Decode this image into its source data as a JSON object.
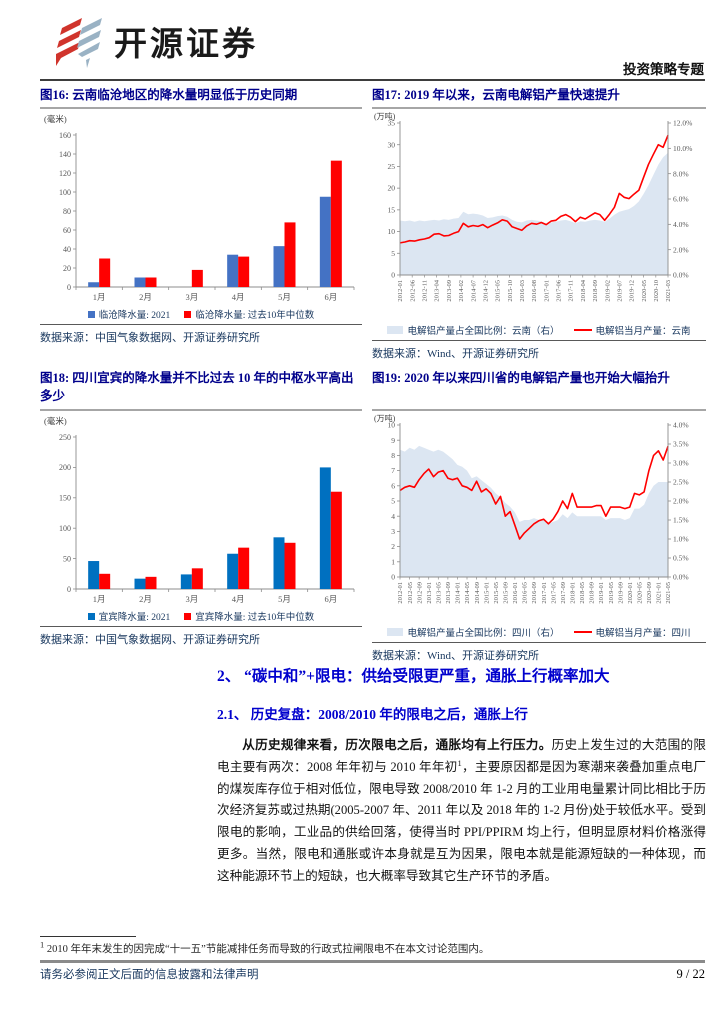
{
  "header": {
    "brand": "开源证券",
    "doc_type": "投资策略专题"
  },
  "figures": [
    {
      "title": "图16:  云南临沧地区的降水量明显低于历史同期",
      "source": "数据来源：中国气象数据网、开源证券研究所"
    },
    {
      "title": "图17:  2019 年以来，云南电解铝产量快速提升",
      "source": "数据来源：Wind、开源证券研究所"
    },
    {
      "title": "图18:  四川宜宾的降水量并不比过去 10 年的中枢水平高出多少",
      "source": "数据来源：中国气象数据网、开源证券研究所"
    },
    {
      "title": "图19:  2020 年以来四川省的电解铝产量也开始大幅抬升",
      "source": "数据来源：Wind、开源证券研究所"
    }
  ],
  "chart_data": [
    {
      "id": "fig16",
      "type": "bar",
      "unit": "(毫米)",
      "categories": [
        "1月",
        "2月",
        "3月",
        "4月",
        "5月",
        "6月"
      ],
      "ylim": [
        0,
        160
      ],
      "ystep": 20,
      "series": [
        {
          "name": "临沧降水量: 2021",
          "color": "#4472C4",
          "values": [
            5,
            10,
            0,
            34,
            43,
            95
          ]
        },
        {
          "name": "临沧降水量: 过去10年中位数",
          "color": "#FF0000",
          "values": [
            30,
            10,
            18,
            32,
            68,
            133
          ]
        }
      ]
    },
    {
      "id": "fig17",
      "type": "area+line",
      "unit": "(万吨)",
      "left_axis": {
        "lim": [
          0,
          35
        ],
        "step": 5
      },
      "right_axis": {
        "lim": [
          0,
          12
        ],
        "step": 2
      },
      "x_labels": [
        "2012-01",
        "2012-06",
        "2012-11",
        "2013-04",
        "2013-09",
        "2014-02",
        "2014-07",
        "2014-12",
        "2015-05",
        "2015-10",
        "2016-03",
        "2016-08",
        "2017-01",
        "2017-06",
        "2017-11",
        "2018-04",
        "2018-09",
        "2019-02",
        "2019-07",
        "2019-12",
        "2020-05",
        "2020-10",
        "2021-03"
      ],
      "area": {
        "name": "电解铝产量占全国比例：云南（右）",
        "color": "#DCE6F2",
        "axis": "right",
        "values": [
          4.3,
          4.25,
          4.3,
          4.2,
          4.3,
          4.25,
          4.3,
          4.35,
          4.3,
          4.4,
          4.35,
          4.45,
          4.5,
          5.0,
          4.8,
          4.85,
          4.8,
          4.7,
          4.5,
          4.55,
          4.65,
          4.7,
          4.6,
          4.35,
          4.2,
          4.15,
          4.3,
          4.35,
          4.3,
          4.25,
          4.05,
          4.15,
          4.2,
          4.3,
          4.35,
          4.25,
          4.1,
          4.25,
          4.2,
          4.3,
          4.35,
          4.3,
          4.2,
          4.45,
          4.75,
          5.0,
          5.1,
          5.2,
          5.45,
          5.8,
          6.4,
          7.1,
          7.9,
          8.7,
          9.3,
          9.65
        ]
      },
      "line": {
        "name": "电解铝当月产量：云南",
        "color": "#FF0000",
        "axis": "left",
        "values": [
          7.4,
          7.6,
          7.9,
          7.8,
          8.1,
          8.3,
          8.6,
          9.4,
          9.5,
          9.0,
          9.1,
          9.6,
          10.0,
          11.9,
          11.1,
          11.4,
          11.2,
          11.6,
          10.9,
          11.5,
          12.0,
          12.7,
          12.4,
          11.1,
          10.7,
          10.3,
          11.3,
          11.9,
          11.7,
          12.1,
          11.6,
          12.4,
          12.6,
          13.5,
          13.9,
          13.3,
          12.3,
          13.3,
          12.9,
          13.6,
          14.3,
          13.9,
          12.6,
          14.0,
          15.6,
          18.8,
          17.9,
          17.6,
          18.6,
          19.5,
          22.5,
          25.5,
          27.8,
          30.0,
          29.4,
          32.2
        ]
      }
    },
    {
      "id": "fig18",
      "type": "bar",
      "unit": "(毫米)",
      "categories": [
        "1月",
        "2月",
        "3月",
        "4月",
        "5月",
        "6月"
      ],
      "ylim": [
        0,
        250
      ],
      "ystep": 50,
      "series": [
        {
          "name": "宜宾降水量: 2021",
          "color": "#0070C0",
          "values": [
            46,
            17,
            24,
            58,
            85,
            200
          ]
        },
        {
          "name": "宜宾降水量: 过去10年中位数",
          "color": "#FF0000",
          "values": [
            25,
            20,
            34,
            68,
            76,
            160
          ]
        }
      ]
    },
    {
      "id": "fig19",
      "type": "area+line",
      "unit": "(万吨)",
      "left_axis": {
        "lim": [
          0,
          10
        ],
        "step": 1
      },
      "right_axis": {
        "lim": [
          0,
          4
        ],
        "step": 0.5
      },
      "x_labels": [
        "2012-01",
        "2012-05",
        "2012-09",
        "2013-01",
        "2013-05",
        "2013-09",
        "2014-01",
        "2014-05",
        "2014-09",
        "2015-01",
        "2015-05",
        "2015-09",
        "2016-01",
        "2016-05",
        "2016-09",
        "2017-01",
        "2017-05",
        "2017-09",
        "2018-01",
        "2018-05",
        "2018-09",
        "2019-01",
        "2019-05",
        "2019-09",
        "2020-01",
        "2020-05",
        "2020-09",
        "2021-01",
        "2021-05"
      ],
      "area": {
        "name": "电解铝产量占全国比例：四川（右）",
        "color": "#DCE6F2",
        "axis": "right",
        "values": [
          3.35,
          3.3,
          3.4,
          3.35,
          3.45,
          3.4,
          3.35,
          3.3,
          3.35,
          3.3,
          3.2,
          3.1,
          2.95,
          2.9,
          2.8,
          2.6,
          2.65,
          2.55,
          2.45,
          2.35,
          2.2,
          2.1,
          1.95,
          1.85,
          1.7,
          1.45,
          1.5,
          1.5,
          1.55,
          1.5,
          1.5,
          1.4,
          1.45,
          1.5,
          1.65,
          1.55,
          1.7,
          1.6,
          1.6,
          1.6,
          1.6,
          1.6,
          1.6,
          1.5,
          1.55,
          1.55,
          1.55,
          1.5,
          1.55,
          1.8,
          1.8,
          1.9,
          2.2,
          2.4,
          2.5,
          2.5,
          2.5
        ]
      },
      "line": {
        "name": "电解铝当月产量：四川",
        "color": "#FF0000",
        "axis": "left",
        "values": [
          5.7,
          5.9,
          6.0,
          5.9,
          6.4,
          6.8,
          7.1,
          6.6,
          6.9,
          7.0,
          6.5,
          6.4,
          6.5,
          6.0,
          5.9,
          5.7,
          6.3,
          5.6,
          5.8,
          5.5,
          4.8,
          5.3,
          4.0,
          4.3,
          3.4,
          2.5,
          2.9,
          3.2,
          3.5,
          3.7,
          3.8,
          3.5,
          3.8,
          4.3,
          5.0,
          4.5,
          5.5,
          4.6,
          4.6,
          4.6,
          4.6,
          4.7,
          4.7,
          4.0,
          4.6,
          4.6,
          4.6,
          4.5,
          4.6,
          5.5,
          5.4,
          5.6,
          7.0,
          8.0,
          8.3,
          7.7,
          8.6
        ]
      }
    }
  ],
  "section": {
    "h2": "2、  “碳中和”+限电：供给受限更严重，通胀上行概率加大",
    "h3": "2.1、 历史复盘：2008/2010 年的限电之后，通胀上行",
    "paragraph": {
      "bold": "从历史规律来看，历次限电之后，通胀均有上行压力。",
      "before_sup": "历史上发生过的大范围的限电主要有两次：2008 年年初与 2010 年年初",
      "sup_marker": "1",
      "after_sup": "，主要原因都是因为寒潮来袭叠加重点电厂的煤炭库存位于相对低位，限电导致 2008/2010 年 1-2 月的工业用电量累计同比相比于历次经济复苏或过热期(2005-2007 年、2011 年以及 2018 年的 1-2 月份)处于较低水平。受到限电的影响，工业品的供给回落，使得当时 PPI/PPIRM 均上行，但明显原材料价格涨得更多。当然，限电和通胀或许本身就是互为因果，限电本就是能源短缺的一种体现，而这种能源环节上的短缺，也大概率导致其它生产环节的矛盾。"
    }
  },
  "footnote": {
    "marker": "1",
    "text": "2010 年年末发生的因完成“十一五”节能减排任务而导致的行政式拉闸限电不在本文讨论范围内。"
  },
  "footer": {
    "disclaimer": "请务必参阅正文后面的信息披露和法律声明",
    "page": "9 / 22"
  },
  "colors": {
    "bar_blue_16": "#4472C4",
    "bar_blue_18": "#0070C0",
    "series_red": "#FF0000",
    "area_fill": "#DCE6F2",
    "title_navy": "#00008B",
    "heading_blue": "#0000CD",
    "source_navy": "#17365D",
    "logo_red": "#D0342C",
    "logo_blue": "#9AB2C4"
  }
}
